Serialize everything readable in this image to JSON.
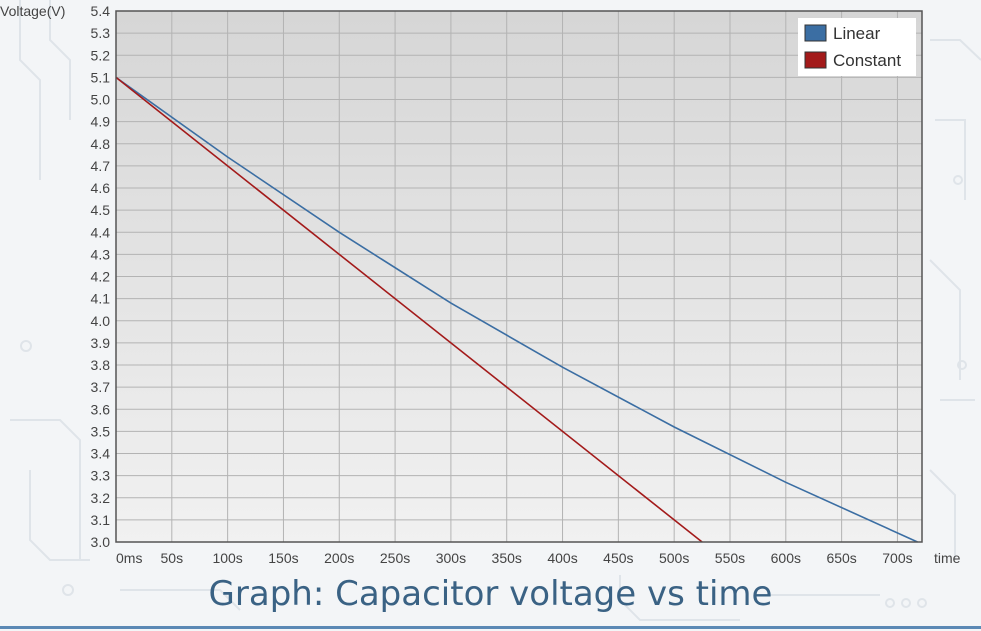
{
  "chart_data": {
    "type": "line",
    "caption": "Graph: Capacitor voltage vs time",
    "ylabel": "Voltage(V)",
    "xlabel": "time",
    "ylim": [
      3.0,
      5.4
    ],
    "xlim": [
      0,
      722
    ],
    "x_ticks": [
      0,
      50,
      100,
      150,
      200,
      250,
      300,
      350,
      400,
      450,
      500,
      550,
      600,
      650,
      700
    ],
    "x_tick_labels": [
      "0ms",
      "50s",
      "100s",
      "150s",
      "200s",
      "250s",
      "300s",
      "350s",
      "400s",
      "450s",
      "500s",
      "550s",
      "600s",
      "650s",
      "700s"
    ],
    "y_ticks": [
      3.0,
      3.1,
      3.2,
      3.3,
      3.4,
      3.5,
      3.6,
      3.7,
      3.8,
      3.9,
      4.0,
      4.1,
      4.2,
      4.3,
      4.4,
      4.5,
      4.6,
      4.7,
      4.8,
      4.9,
      5.0,
      5.1,
      5.2,
      5.3,
      5.4
    ],
    "y_tick_labels": [
      "3.0",
      "3.1",
      "3.2",
      "3.3",
      "3.4",
      "3.5",
      "3.6",
      "3.7",
      "3.8",
      "3.9",
      "4.0",
      "4.1",
      "4.2",
      "4.3",
      "4.4",
      "4.5",
      "4.6",
      "4.7",
      "4.8",
      "4.9",
      "5.0",
      "5.1",
      "5.2",
      "5.3",
      "5.4"
    ],
    "grid": true,
    "legend_position": "top-right",
    "series": [
      {
        "name": "Linear",
        "color": "#3b6ea3",
        "x": [
          0,
          100,
          200,
          300,
          400,
          500,
          600,
          718
        ],
        "y": [
          5.1,
          4.74,
          4.4,
          4.08,
          3.79,
          3.52,
          3.27,
          3.0
        ]
      },
      {
        "name": "Constant",
        "color": "#a31a1a",
        "x": [
          0,
          525
        ],
        "y": [
          5.1,
          3.0
        ]
      }
    ]
  }
}
